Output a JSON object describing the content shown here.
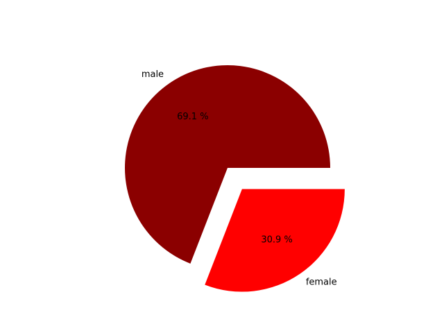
{
  "chart_data": {
    "type": "pie",
    "slices": [
      {
        "label": "male",
        "value": 69.1,
        "pct_label": "69.1 %",
        "color": "#8b0000",
        "exploded": false
      },
      {
        "label": "female",
        "value": 30.9,
        "pct_label": "30.9 %",
        "color": "#ff0000",
        "exploded": true
      }
    ],
    "legend": "none"
  }
}
